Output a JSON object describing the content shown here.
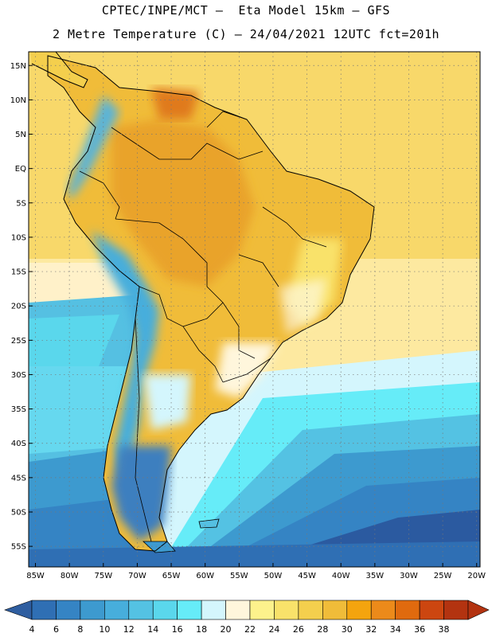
{
  "title_line1": "CPTEC/INPE/MCT —  Eta Model 15km — GFS",
  "title_line2": "2 Metre Temperature (C) — 24/04/2021 12UTC fct=201h",
  "lat_labels": [
    "15N",
    "10N",
    "5N",
    "EQ",
    "5S",
    "10S",
    "15S",
    "20S",
    "25S",
    "30S",
    "35S",
    "40S",
    "45S",
    "50S",
    "55S"
  ],
  "lat_values": [
    15,
    10,
    5,
    0,
    -5,
    -10,
    -15,
    -20,
    -25,
    -30,
    -35,
    -40,
    -45,
    -50,
    -55
  ],
  "lon_labels": [
    "85W",
    "80W",
    "75W",
    "70W",
    "65W",
    "60W",
    "55W",
    "50W",
    "45W",
    "40W",
    "35W",
    "30W",
    "25W",
    "20W"
  ],
  "lon_values": [
    -85,
    -80,
    -75,
    -70,
    -65,
    -60,
    -55,
    -50,
    -45,
    -40,
    -35,
    -30,
    -25,
    -20
  ],
  "map_extent": {
    "lon_min": -86,
    "lon_max": -19.5,
    "lat_min": -58,
    "lat_max": 17
  },
  "colorbar": {
    "labels": [
      "4",
      "6",
      "8",
      "10",
      "12",
      "14",
      "16",
      "18",
      "20",
      "22",
      "24",
      "26",
      "28",
      "30",
      "32",
      "34",
      "36",
      "38"
    ],
    "colors": [
      "#2f6fb4",
      "#3584c4",
      "#3d9acf",
      "#47aedc",
      "#54c2e3",
      "#5ad7ec",
      "#66ecf8",
      "#d4f6fd",
      "#fff6dc",
      "#fdf28c",
      "#f9e26a",
      "#f4cf4d",
      "#f0bc39",
      "#f4a40e",
      "#ec8a1a",
      "#e06a0e",
      "#cc4610",
      "#b33310"
    ],
    "low_color": "#2f5ea0",
    "high_color": "#b33310"
  },
  "field_colors": {
    "ocean_cold": "#2b5aa0",
    "ocean_cool": "#3d8fcc",
    "ocean_mid": "#55c0e2",
    "ocean_light": "#cdf2fb",
    "ocean_warm": "#fde9a0",
    "ocean_hot": "#f8d86a",
    "land_hot": "#f0b93a",
    "land_very_hot": "#e9a32a",
    "andes": "#5ab4d8",
    "patagonia": "#3e7fbf"
  }
}
